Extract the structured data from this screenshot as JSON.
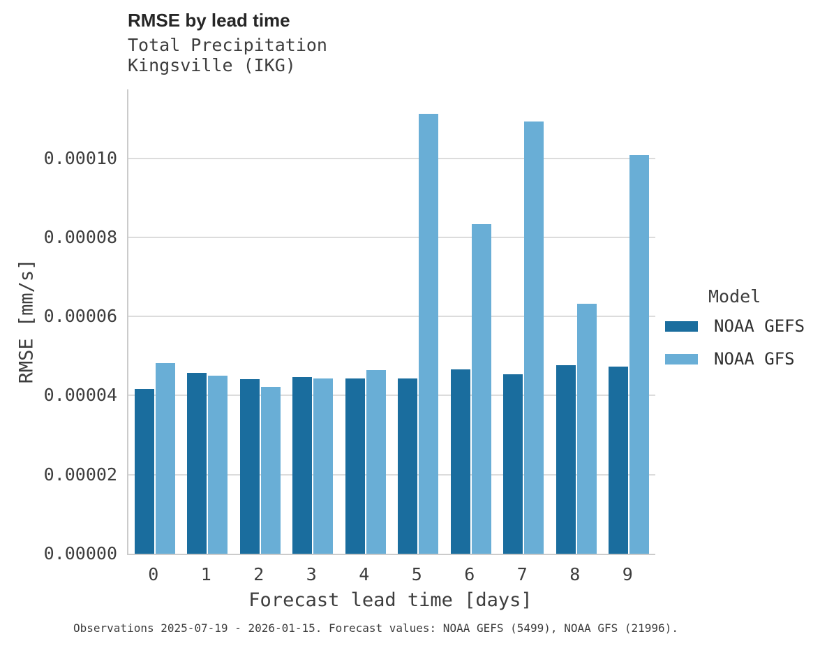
{
  "chart_data": {
    "type": "bar",
    "title": "RMSE by lead time",
    "subtitle_line1": "Total Precipitation",
    "subtitle_line2": "Kingsville (IKG)",
    "xlabel": "Forecast lead time [days]",
    "ylabel": "RMSE [mm/s]",
    "categories": [
      "0",
      "1",
      "2",
      "3",
      "4",
      "5",
      "6",
      "7",
      "8",
      "9"
    ],
    "series": [
      {
        "name": "NOAA GEFS",
        "color": "#1a6d9e",
        "values": [
          4.17e-05,
          4.58e-05,
          4.42e-05,
          4.46e-05,
          4.44e-05,
          4.44e-05,
          4.66e-05,
          4.53e-05,
          4.77e-05,
          4.73e-05
        ]
      },
      {
        "name": "NOAA GFS",
        "color": "#69aed6",
        "values": [
          4.82e-05,
          4.5e-05,
          4.22e-05,
          4.43e-05,
          4.64e-05,
          0.0001113,
          8.33e-05,
          0.0001092,
          6.32e-05,
          0.0001008
        ]
      }
    ],
    "ylim": [
      0,
      0.0001174
    ],
    "ytick_values": [
      0,
      2e-05,
      4e-05,
      6e-05,
      8e-05,
      0.0001
    ],
    "ytick_labels": [
      "0.00000",
      "0.00002",
      "0.00004",
      "0.00006",
      "0.00008",
      "0.00010"
    ],
    "grid": "horizontal",
    "legend_title": "Model",
    "legend_position": "right",
    "caption": "Observations 2025-07-19 - 2026-01-15. Forecast values: NOAA GEFS (5499), NOAA GFS (21996)."
  }
}
